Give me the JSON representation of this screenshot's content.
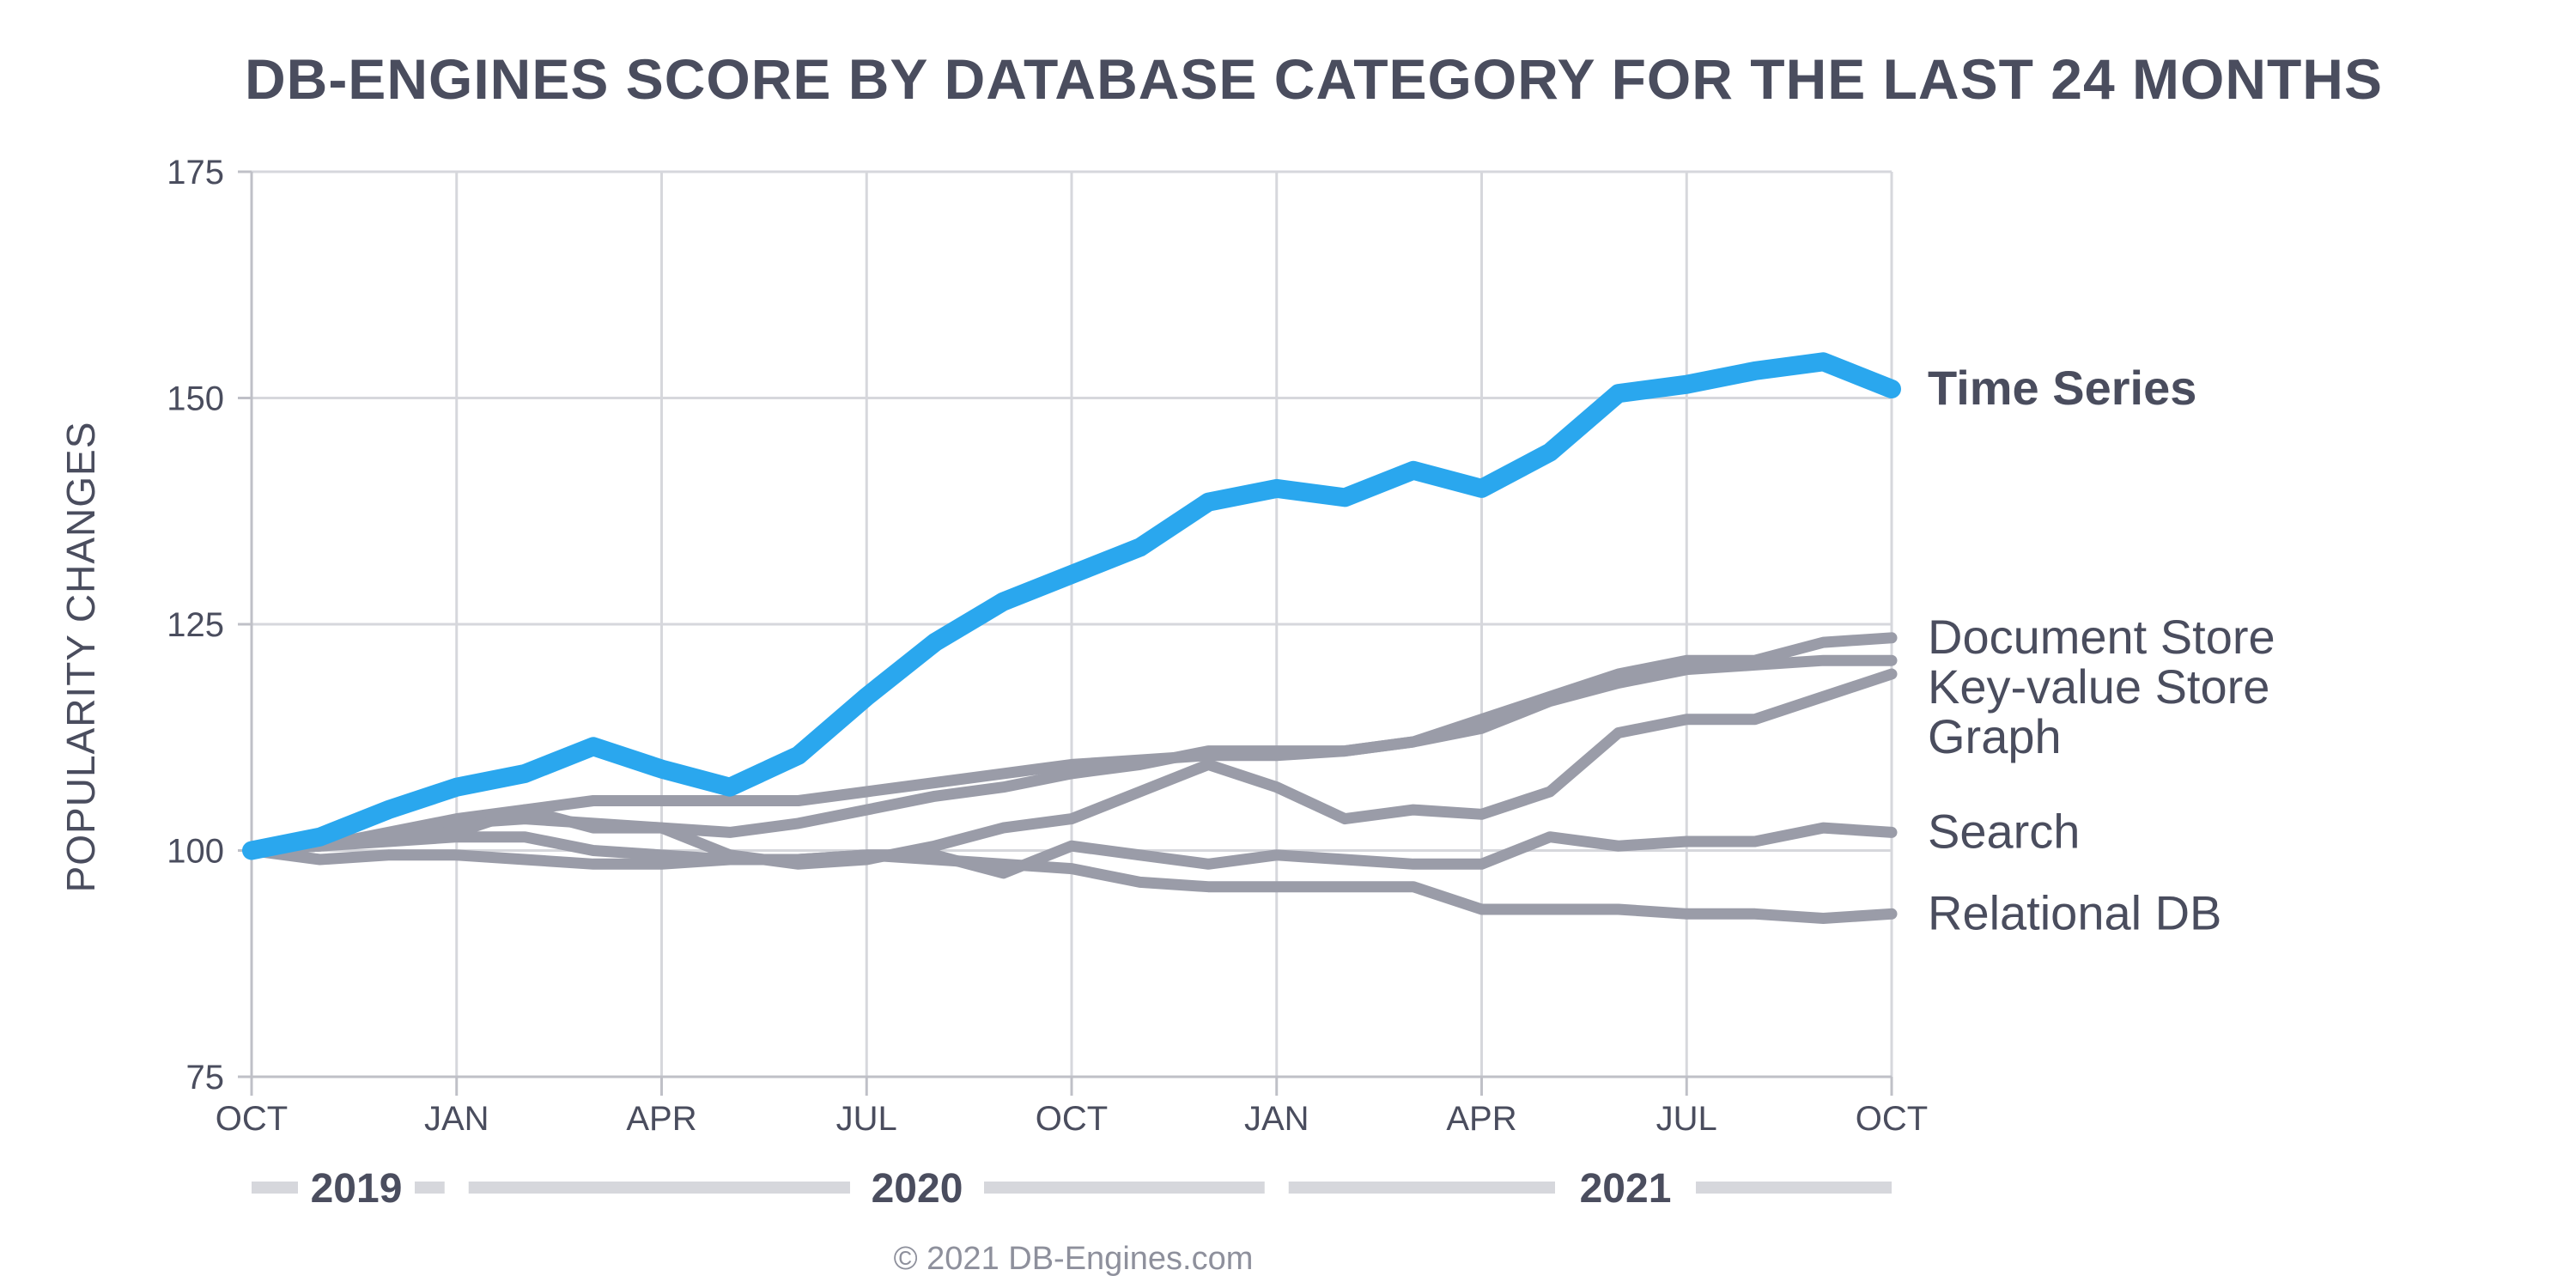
{
  "chart_data": {
    "type": "line",
    "title": "DB-ENGINES SCORE BY DATABASE CATEGORY FOR THE LAST 24 MONTHS",
    "ylabel": "POPULARITY CHANGES",
    "ylim": [
      75,
      175
    ],
    "yticks": [
      "75",
      "100",
      "125",
      "150",
      "175"
    ],
    "xticks": [
      "OCT",
      "JAN",
      "APR",
      "JUL",
      "OCT",
      "JAN",
      "APR",
      "JUL",
      "OCT"
    ],
    "years": [
      "2019",
      "2020",
      "2021"
    ],
    "grid": true,
    "x": [
      "2019-10",
      "2019-11",
      "2019-12",
      "2020-01",
      "2020-02",
      "2020-03",
      "2020-04",
      "2020-05",
      "2020-06",
      "2020-07",
      "2020-08",
      "2020-09",
      "2020-10",
      "2020-11",
      "2020-12",
      "2021-01",
      "2021-02",
      "2021-03",
      "2021-04",
      "2021-05",
      "2021-06",
      "2021-07",
      "2021-08",
      "2021-09",
      "2021-10"
    ],
    "series": [
      {
        "name": "Time Series",
        "highlight": true,
        "color": "#2aa7ee",
        "values": [
          100,
          101.5,
          104.5,
          107,
          108.5,
          111.5,
          109,
          107,
          110.5,
          117,
          123,
          127.5,
          130.5,
          133.5,
          138.5,
          140,
          139,
          142,
          140,
          144,
          150.5,
          151.5,
          153,
          154,
          151
        ]
      },
      {
        "name": "Document Store",
        "highlight": false,
        "color": "#9a9ca8",
        "values": [
          100,
          100.5,
          101.5,
          103,
          103.5,
          103,
          102.5,
          102,
          103,
          104.5,
          106,
          107,
          108.5,
          109.5,
          111,
          111,
          111,
          112,
          114.5,
          117,
          119.5,
          121,
          121,
          123,
          123.5
        ]
      },
      {
        "name": "Key-value Store",
        "highlight": false,
        "color": "#9a9ca8",
        "values": [
          100,
          100.5,
          102,
          103.5,
          104.5,
          105.5,
          105.5,
          105.5,
          105.5,
          106.5,
          107.5,
          108.5,
          109.5,
          110,
          110.5,
          110.5,
          111,
          112,
          113.5,
          116.5,
          118.5,
          120,
          120.5,
          121,
          121
        ]
      },
      {
        "name": "Graph",
        "highlight": false,
        "color": "#9a9ca8",
        "values": [
          100,
          100.5,
          101.5,
          102,
          104.5,
          102.5,
          102.5,
          99.5,
          98.5,
          99,
          100.5,
          102.5,
          103.5,
          106.5,
          109.5,
          107,
          103.5,
          104.5,
          104,
          106.5,
          113,
          114.5,
          114.5,
          117,
          119.5
        ]
      },
      {
        "name": "Search",
        "highlight": false,
        "color": "#9a9ca8",
        "values": [
          100,
          100.5,
          101,
          101.5,
          101.5,
          100,
          99.5,
          99,
          99,
          99.5,
          99.5,
          97.5,
          100.5,
          99.5,
          98.5,
          99.5,
          99,
          98.5,
          98.5,
          101.5,
          100.5,
          101,
          101,
          102.5,
          102
        ]
      },
      {
        "name": "Relational DB",
        "highlight": false,
        "color": "#9a9ca8",
        "values": [
          100,
          99,
          99.5,
          99.5,
          99,
          98.5,
          98.5,
          99,
          99,
          99.5,
          99,
          98.5,
          98,
          96.5,
          96,
          96,
          96,
          96,
          93.5,
          93.5,
          93.5,
          93,
          93,
          92.5,
          93
        ]
      }
    ]
  },
  "footer": {
    "copyright": "© 2021 DB-Engines.com"
  }
}
